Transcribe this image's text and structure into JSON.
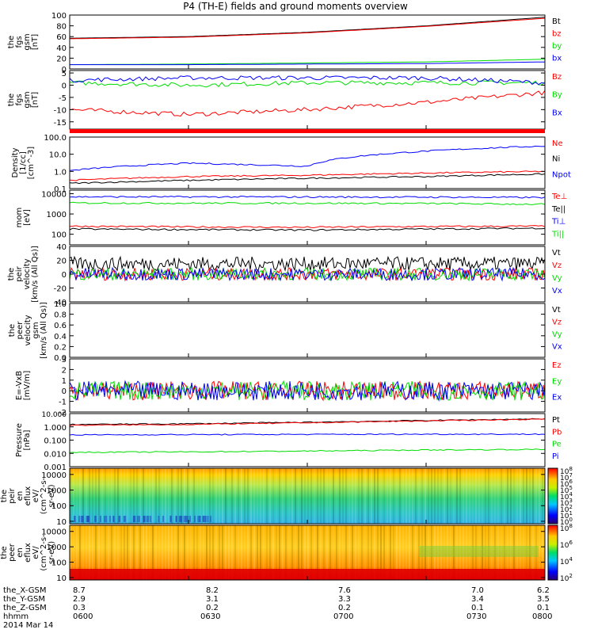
{
  "title": "P4 (TH-E) fields and ground moments overview",
  "footer": {
    "rows": [
      {
        "label": "the_X-GSM",
        "values": [
          "8.7",
          "8.2",
          "7.6",
          "7.0",
          "6.2"
        ]
      },
      {
        "label": "the_Y-GSM",
        "values": [
          "2.9",
          "3.1",
          "3.3",
          "3.4",
          "3.5"
        ]
      },
      {
        "label": "the_Z-GSM",
        "values": [
          "0.3",
          "0.2",
          "0.2",
          "0.1",
          "0.1"
        ]
      },
      {
        "label": "hhmm",
        "values": [
          "0600",
          "0630",
          "0700",
          "0730",
          "0800"
        ]
      }
    ],
    "date": "2014 Mar 14"
  },
  "colorbar1": {
    "labels": [
      "10^8",
      "10^7",
      "10^6",
      "10^5",
      "10^4",
      "10^3",
      "10^2",
      "10^1",
      "10^0"
    ]
  },
  "colorbar2": {
    "labels": [
      "10^8",
      "10^6",
      "10^4",
      "10^2"
    ]
  },
  "colors": {
    "black": "#000000",
    "red": "#ff0000",
    "green": "#00dd00",
    "blue": "#0000ff"
  },
  "chart_data": [
    {
      "type": "line",
      "ylabel": [
        "the",
        "fgs",
        "gsm",
        "[nT]"
      ],
      "yticks": [
        "100",
        "80",
        "60",
        "40",
        "20",
        "0"
      ],
      "ylim": [
        0,
        100
      ],
      "x": [
        "0600",
        "0630",
        "0700",
        "0730",
        "0800"
      ],
      "series": [
        {
          "name": "Bt",
          "color": "#000000",
          "values": [
            57,
            60,
            68,
            80,
            96
          ]
        },
        {
          "name": "bz",
          "color": "#ff0000",
          "values": [
            56,
            59,
            67,
            79,
            94
          ]
        },
        {
          "name": "by",
          "color": "#00dd00",
          "values": [
            8,
            9,
            11,
            13,
            18
          ]
        },
        {
          "name": "bx",
          "color": "#0000ff",
          "values": [
            8,
            8,
            9,
            10,
            13
          ]
        }
      ]
    },
    {
      "type": "line",
      "ylabel": [
        "the",
        "fgs",
        "gsm",
        "[nT]"
      ],
      "yticks": [
        "5",
        "0",
        "-5",
        "-10",
        "-15"
      ],
      "ylim": [
        -18,
        6
      ],
      "x": [
        "0600",
        "0630",
        "0700",
        "0730",
        "0800"
      ],
      "series": [
        {
          "name": "Bz",
          "color": "#ff0000",
          "values": [
            -10,
            -12,
            -10,
            -7,
            -3
          ]
        },
        {
          "name": "By",
          "color": "#00dd00",
          "values": [
            1,
            0,
            1,
            1,
            1
          ]
        },
        {
          "name": "Bx",
          "color": "#0000ff",
          "values": [
            2,
            3,
            3,
            3,
            1
          ]
        }
      ]
    },
    {
      "type": "line",
      "ylabel": [
        "Density",
        "[1/cc]",
        "[cm^-3]"
      ],
      "yticks": [
        "100.0",
        "10.0",
        "1.0",
        "0.1"
      ],
      "ylim": [
        0.1,
        100
      ],
      "log": true,
      "x": [
        "0600",
        "0630",
        "0700",
        "0730",
        "0800"
      ],
      "series": [
        {
          "name": "Ne",
          "color": "#ff0000",
          "values": [
            0.3,
            0.5,
            0.6,
            0.8,
            1.0
          ]
        },
        {
          "name": "Ni",
          "color": "#000000",
          "values": [
            0.2,
            0.3,
            0.4,
            0.5,
            0.7
          ]
        },
        {
          "name": "Npot",
          "color": "#0000ff",
          "values": [
            1.1,
            3,
            2,
            15,
            30
          ]
        }
      ]
    },
    {
      "type": "line",
      "ylabel": [
        "mom",
        "[eV]"
      ],
      "yticks": [
        "10000",
        "1000",
        "100"
      ],
      "ylim": [
        30,
        15000
      ],
      "log": true,
      "x": [
        "0600",
        "0630",
        "0700",
        "0730",
        "0800"
      ],
      "series": [
        {
          "name": "Te⊥",
          "color": "#ff0000",
          "values": [
            250,
            230,
            220,
            240,
            250
          ]
        },
        {
          "name": "Te||",
          "color": "#000000",
          "values": [
            180,
            170,
            160,
            180,
            200
          ]
        },
        {
          "name": "Ti⊥",
          "color": "#0000ff",
          "values": [
            7000,
            7000,
            6900,
            6800,
            6500
          ]
        },
        {
          "name": "Ti||",
          "color": "#00dd00",
          "values": [
            3500,
            3400,
            3400,
            3300,
            3000
          ]
        }
      ]
    },
    {
      "type": "line",
      "ylabel": [
        "the",
        "peir",
        "velocity",
        "[km/s (All Qs)]"
      ],
      "yticks": [
        "40",
        "20",
        "0",
        "-20",
        "-40"
      ],
      "ylim": [
        -40,
        40
      ],
      "x": [
        "0600",
        "0630",
        "0700",
        "0730",
        "0800"
      ],
      "series": [
        {
          "name": "Vt",
          "color": "#000000",
          "values": [
            15,
            15,
            15,
            15,
            15
          ]
        },
        {
          "name": "Vz",
          "color": "#ff0000",
          "values": [
            0,
            0,
            0,
            0,
            0
          ]
        },
        {
          "name": "Vy",
          "color": "#00dd00",
          "values": [
            0,
            0,
            0,
            0,
            0
          ]
        },
        {
          "name": "Vx",
          "color": "#0000ff",
          "values": [
            0,
            0,
            0,
            0,
            0
          ]
        }
      ]
    },
    {
      "type": "line",
      "ylabel": [
        "the",
        "peer",
        "velocity",
        "gsm",
        "[km/s (All Qs)]"
      ],
      "yticks": [
        "1.0",
        "0.8",
        "0.6",
        "0.4",
        "0.2",
        "0.0"
      ],
      "ylim": [
        0,
        1
      ],
      "x": [],
      "series": [
        {
          "name": "Vt",
          "color": "#000000",
          "values": []
        },
        {
          "name": "Vz",
          "color": "#ff0000",
          "values": []
        },
        {
          "name": "Vy",
          "color": "#00dd00",
          "values": []
        },
        {
          "name": "Vx",
          "color": "#0000ff",
          "values": []
        }
      ]
    },
    {
      "type": "line",
      "ylabel": [
        "E=-VxB",
        "[mV/m]"
      ],
      "yticks": [
        "3",
        "2",
        "1",
        "0",
        "-1",
        "-2"
      ],
      "ylim": [
        -2,
        3
      ],
      "x": [
        "0600",
        "0630",
        "0700",
        "0730",
        "0800"
      ],
      "series": [
        {
          "name": "Ez",
          "color": "#ff0000",
          "values": [
            0,
            0,
            0,
            0,
            0
          ]
        },
        {
          "name": "Ey",
          "color": "#00dd00",
          "values": [
            0,
            0,
            0,
            0,
            0
          ]
        },
        {
          "name": "Ex",
          "color": "#0000ff",
          "values": [
            0,
            0,
            0,
            0,
            0
          ]
        }
      ]
    },
    {
      "type": "line",
      "ylabel": [
        "Pressure",
        "[nPa]"
      ],
      "yticks": [
        "10.000",
        "1.000",
        "0.100",
        "0.010",
        "0.001"
      ],
      "ylim": [
        0.001,
        10
      ],
      "log": true,
      "x": [
        "0600",
        "0630",
        "0700",
        "0730",
        "0800"
      ],
      "series": [
        {
          "name": "Pt",
          "color": "#000000",
          "values": [
            1.5,
            1.7,
            2.2,
            3.0,
            4.0
          ]
        },
        {
          "name": "Pb",
          "color": "#ff0000",
          "values": [
            1.3,
            1.5,
            2.0,
            2.8,
            3.8
          ]
        },
        {
          "name": "Pe",
          "color": "#00dd00",
          "values": [
            0.012,
            0.013,
            0.015,
            0.018,
            0.02
          ]
        },
        {
          "name": "Pi",
          "color": "#0000ff",
          "values": [
            0.25,
            0.26,
            0.27,
            0.28,
            0.28
          ]
        }
      ]
    },
    {
      "type": "heatmap",
      "ylabel": [
        "the",
        "peir",
        "en",
        "eflux",
        "eV/",
        "(cm^2-s-",
        "sr-eV)"
      ],
      "yticks": [
        "10000",
        "1000",
        "100",
        "10"
      ],
      "ylim": [
        7,
        25000
      ],
      "log": true
    },
    {
      "type": "heatmap",
      "ylabel": [
        "the",
        "peer",
        "en",
        "eflux",
        "eV/",
        "(cm^2-s-",
        "sr-eV)"
      ],
      "yticks": [
        "10000",
        "1000",
        "100",
        "10"
      ],
      "ylim": [
        7,
        25000
      ],
      "log": true
    }
  ]
}
